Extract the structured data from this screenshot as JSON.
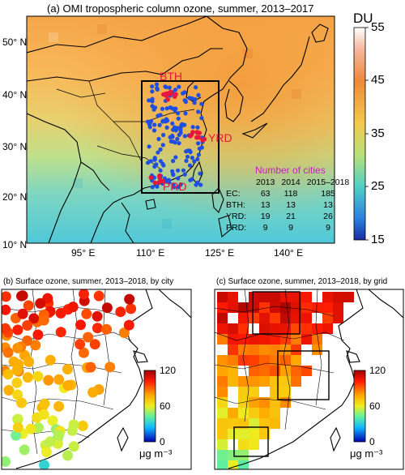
{
  "panel_a": {
    "title": "(a) OMI tropospheric column ozone, summer, 2013–2017",
    "colorbar_unit": "DU",
    "colorbar_ticks": [
      "55",
      "45",
      "35",
      "25",
      "15"
    ],
    "lat_labels": [
      "50° N",
      "40° N",
      "30° N",
      "20° N",
      "10° N"
    ],
    "lon_labels": [
      "95° E",
      "110° E",
      "125° E",
      "140° E"
    ],
    "region_labels": [
      "BTH",
      "YRD",
      "PRD"
    ],
    "table": {
      "title": "Number of cities",
      "headers": [
        "",
        "2013",
        "2014",
        "2015–2018"
      ],
      "rows": [
        [
          "EC:",
          "63",
          "118",
          "185"
        ],
        [
          "BTH:",
          "13",
          "13",
          "13"
        ],
        [
          "YRD:",
          "19",
          "21",
          "26"
        ],
        [
          "PRD:",
          "9",
          "9",
          "9"
        ]
      ]
    }
  },
  "panel_b": {
    "title": "(b) Surface ozone, summer, 2013–2018, by city",
    "colorbar_ticks": [
      "120",
      "60",
      "0"
    ],
    "unit": "μg m⁻³"
  },
  "panel_c": {
    "title": "(c) Surface ozone, summer, 2013–2018, by grid",
    "colorbar_ticks": [
      "120",
      "60",
      "0"
    ],
    "unit": "μg m⁻³"
  },
  "colors": {
    "ozone_high": "#ff8c1a",
    "ozone_low": "#33d6d6",
    "city_dot": "#1f4fe0",
    "region_dot": "#e8163c",
    "region_label": "#e8163c",
    "table_title": "#c41ec4",
    "land_border": "#000000"
  }
}
